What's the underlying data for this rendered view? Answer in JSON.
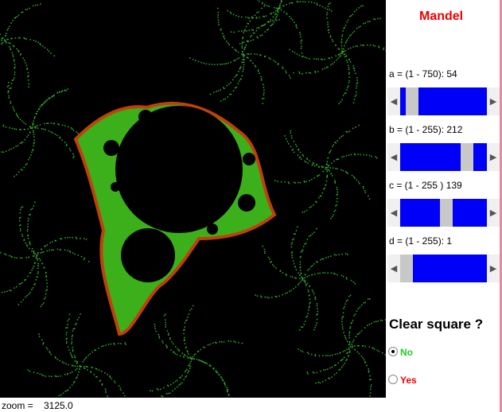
{
  "title": "Mandel",
  "sliders": [
    {
      "label": "a = (1 - 750): 54"
    },
    {
      "label": "b = (1 - 255): 212"
    },
    {
      "label": "c = (1 - 255 ) 139"
    },
    {
      "label": "d = (1 - 255): 1"
    }
  ],
  "clear": {
    "question": "Clear square ?",
    "options": [
      "No",
      "Yes"
    ]
  },
  "status": {
    "label": "zoom =",
    "value": "3125.0"
  }
}
